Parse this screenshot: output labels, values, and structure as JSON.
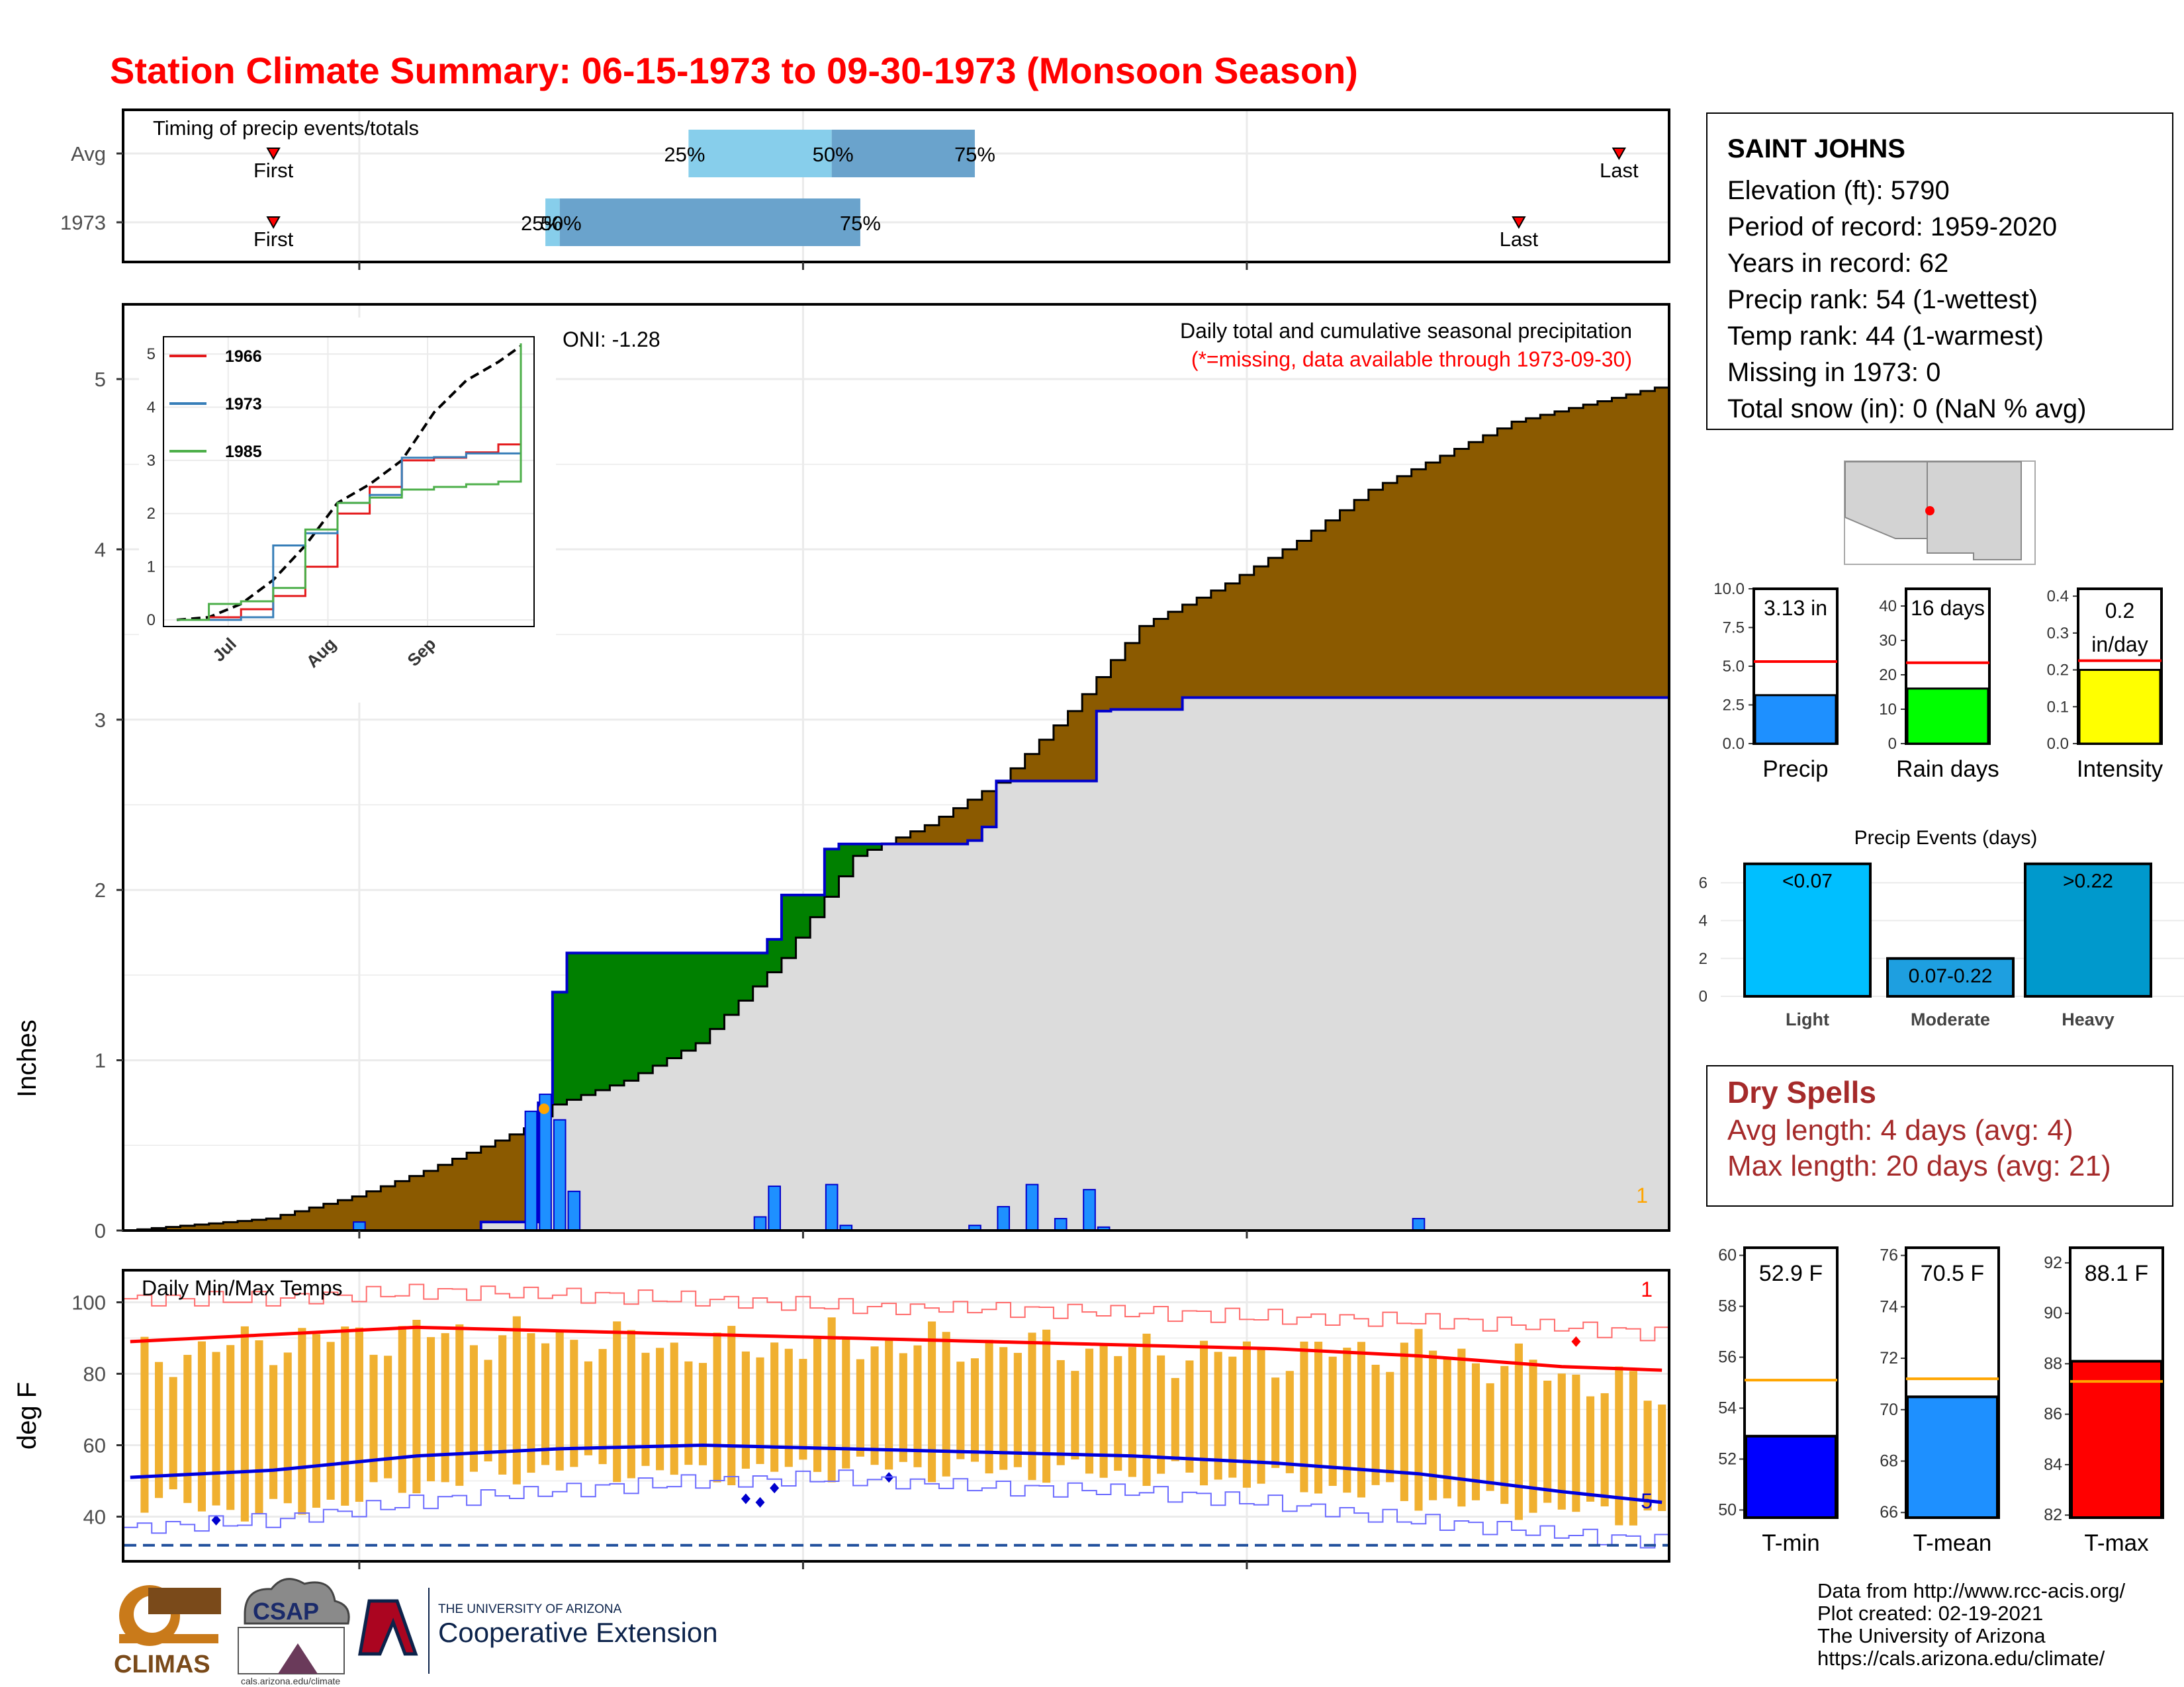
{
  "title": "Station Climate Summary: 06-15-1973 to 09-30-1973 (Monsoon Season)",
  "timing": {
    "label": "Timing of precip events/totals",
    "rows": [
      {
        "name": "Avg",
        "first": "06-25",
        "last": "09-27",
        "p25": "07-24",
        "p50": "08-03",
        "p75": "08-13"
      },
      {
        "name": "1973",
        "first": "06-25",
        "last": "09-20",
        "p25": "07-14",
        "p50": "07-15",
        "p75": "08-05"
      }
    ],
    "labels": {
      "first": "First",
      "last": "Last",
      "p25": "25%",
      "p50": "50%",
      "p75": "75%"
    }
  },
  "month_labels": [
    "Jul",
    "Aug",
    "Sep"
  ],
  "precip_panel": {
    "ylabel": "Inches",
    "yticks": [
      0,
      1,
      2,
      3,
      4,
      5
    ],
    "annotation_title": "Daily total and cumulative seasonal precipitation",
    "annotation_note": "(*=missing, data available through 1973-09-30)",
    "oni": "ONI: -1.28",
    "corner_count": "1"
  },
  "inset": {
    "yticks": [
      0,
      1,
      2,
      3,
      4,
      5
    ],
    "xticks": [
      "Jul",
      "Aug",
      "Sep"
    ],
    "legend": [
      {
        "name": "1966",
        "color": "#e41a1c"
      },
      {
        "name": "1973",
        "color": "#377eb8"
      },
      {
        "name": "1985",
        "color": "#4daf4a"
      }
    ]
  },
  "temp_panel": {
    "ylabel": "deg F",
    "label": "Daily Min/Max Temps",
    "yticks": [
      40,
      60,
      80,
      100
    ],
    "count_top": "1",
    "count_bottom": "5",
    "freeze_line": 32
  },
  "station": {
    "name": "SAINT JOHNS",
    "lines": [
      "Elevation (ft): 5790",
      "Period of record: 1959-2020",
      "Years in record: 62",
      "Precip rank: 54 (1-wettest)",
      "Temp rank: 44 (1-warmest)",
      "Missing in 1973: 0",
      "Total snow (in): 0 (NaN % avg)"
    ]
  },
  "mini_bars": [
    {
      "label": "Precip",
      "value": 3.13,
      "value_text": "3.13 in",
      "avg": 5.3,
      "ymax": 10.0,
      "yticks": [
        "0.0",
        "2.5",
        "5.0",
        "7.5",
        "10.0"
      ],
      "fill": "#1e90ff",
      "line": "#ff0000"
    },
    {
      "label": "Rain days",
      "value": 16,
      "value_text": "16 days",
      "avg": 23.5,
      "ymax": 45,
      "yticks": [
        "0",
        "10",
        "20",
        "30",
        "40"
      ],
      "fill": "#00ff00",
      "line": "#ff0000"
    },
    {
      "label": "Intensity",
      "value": 0.2,
      "value_text": "0.2 in/day",
      "avg": 0.225,
      "ymax": 0.42,
      "yticks": [
        "0.0",
        "0.1",
        "0.2",
        "0.3",
        "0.4"
      ],
      "fill": "#ffff00",
      "line": "#ff0000"
    }
  ],
  "events": {
    "title": "Precip Events (days)",
    "yticks": [
      0,
      2,
      4,
      6
    ],
    "bars": [
      {
        "label": "Light",
        "tag": "<0.07",
        "value": 7,
        "fill": "#00bfff"
      },
      {
        "label": "Moderate",
        "tag": "0.07-0.22",
        "value": 2,
        "fill": "#1e9fe0"
      },
      {
        "label": "Heavy",
        "tag": ">0.22",
        "value": 7,
        "fill": "#0099cc"
      }
    ]
  },
  "dry_spells": {
    "title": "Dry Spells",
    "avg_line": "Avg length: 4 days (avg: 4)",
    "max_line": "Max length: 20 days (avg: 21)"
  },
  "temp_bars": [
    {
      "label": "T-min",
      "value": 52.9,
      "value_text": "52.9 F",
      "avg": 55.1,
      "ymin": 49.7,
      "ymax": 60.3,
      "yticks": [
        50,
        52,
        54,
        56,
        58,
        60
      ],
      "fill": "#0000ff",
      "line": "#ffa500"
    },
    {
      "label": "T-mean",
      "value": 70.5,
      "value_text": "70.5 F",
      "avg": 71.2,
      "ymin": 65.8,
      "ymax": 76.3,
      "yticks": [
        66,
        68,
        70,
        72,
        74,
        76
      ],
      "fill": "#1e90ff",
      "line": "#ffa500"
    },
    {
      "label": "T-max",
      "value": 88.1,
      "value_text": "88.1 F",
      "avg": 87.3,
      "ymin": 81.9,
      "ymax": 92.6,
      "yticks": [
        82,
        84,
        86,
        88,
        90,
        92
      ],
      "fill": "#ff0000",
      "line": "#ffa500"
    }
  ],
  "logos": {
    "climas": "CLIMAS",
    "csap": "CSAP",
    "csap_url": "cals.arizona.edu/climate",
    "ua_small": "THE UNIVERSITY OF ARIZONA",
    "ua_big": "Cooperative Extension"
  },
  "credits": [
    "Data from http://www.rcc-acis.org/",
    "Plot created: 02-19-2021",
    "The University of Arizona",
    "https://cals.arizona.edu/climate/"
  ],
  "chart_data": [
    {
      "type": "area",
      "title": "Daily total and cumulative seasonal precipitation",
      "ylabel": "Inches",
      "ylim": [
        0,
        5.4
      ],
      "x_dates": [
        "06-15",
        "07-01",
        "07-10",
        "07-13",
        "07-14",
        "07-15",
        "07-16",
        "07-29",
        "07-30",
        "07-31",
        "08-03",
        "08-04",
        "08-05",
        "08-13",
        "08-14",
        "08-15",
        "08-17",
        "08-21",
        "08-22",
        "08-23",
        "08-27",
        "08-28",
        "09-13",
        "09-30"
      ],
      "series": [
        {
          "name": "avg_cumulative",
          "knots": [
            [
              "06-15",
              0.0
            ],
            [
              "06-25",
              0.07
            ],
            [
              "07-01",
              0.2
            ],
            [
              "07-06",
              0.35
            ],
            [
              "07-13",
              0.6
            ],
            [
              "07-15",
              0.74
            ],
            [
              "07-20",
              0.88
            ],
            [
              "07-25",
              1.1
            ],
            [
              "07-31",
              1.6
            ],
            [
              "08-05",
              2.2
            ],
            [
              "08-10",
              2.38
            ],
            [
              "08-15",
              2.63
            ],
            [
              "08-20",
              3.05
            ],
            [
              "08-25",
              3.55
            ],
            [
              "08-31",
              3.8
            ],
            [
              "09-05",
              4.05
            ],
            [
              "09-10",
              4.35
            ],
            [
              "09-15",
              4.55
            ],
            [
              "09-20",
              4.75
            ],
            [
              "09-30",
              4.95
            ]
          ]
        },
        {
          "name": "1973_cumulative",
          "values": [
            0.0,
            0.0,
            0.05,
            0.05,
            0.75,
            1.4,
            1.63,
            1.63,
            1.71,
            1.97,
            2.24,
            2.27,
            2.27,
            2.29,
            2.37,
            2.64,
            2.64,
            2.64,
            3.05,
            3.06,
            3.06,
            3.13,
            3.13,
            3.13
          ]
        },
        {
          "name": "1973_daily",
          "points": [
            [
              "07-01",
              0.05
            ],
            [
              "07-13",
              0.7
            ],
            [
              "07-14",
              0.8
            ],
            [
              "07-15",
              0.65
            ],
            [
              "07-16",
              0.23
            ],
            [
              "07-29",
              0.08
            ],
            [
              "07-30",
              0.26
            ],
            [
              "08-03",
              0.27
            ],
            [
              "08-04",
              0.03
            ],
            [
              "08-13",
              0.03
            ],
            [
              "08-15",
              0.14
            ],
            [
              "08-17",
              0.27
            ],
            [
              "08-19",
              0.07
            ],
            [
              "08-21",
              0.24
            ],
            [
              "08-22",
              0.02
            ],
            [
              "09-13",
              0.07
            ]
          ]
        }
      ]
    },
    {
      "type": "line",
      "title": "",
      "x": [
        "06-15",
        "06-25",
        "07-05",
        "07-15",
        "07-25",
        "08-04",
        "08-14",
        "08-24",
        "09-03",
        "09-13",
        "09-23",
        "09-30"
      ],
      "ylim": [
        0,
        5.2
      ],
      "series": [
        {
          "name": "",
          "style": "dashed",
          "values": [
            0.0,
            0.05,
            0.3,
            0.75,
            1.4,
            2.2,
            2.55,
            3.0,
            3.9,
            4.5,
            4.85,
            5.15
          ]
        },
        {
          "name": "1966",
          "values": [
            0.0,
            0.05,
            0.2,
            0.45,
            1.0,
            2.0,
            2.5,
            3.0,
            3.05,
            3.15,
            3.3,
            3.3
          ]
        },
        {
          "name": "1973",
          "values": [
            0.0,
            0.0,
            0.05,
            1.4,
            1.63,
            2.2,
            2.35,
            3.05,
            3.06,
            3.13,
            3.13,
            3.13
          ]
        },
        {
          "name": "1985",
          "values": [
            0.0,
            0.3,
            0.35,
            0.6,
            1.7,
            2.2,
            2.3,
            2.45,
            2.5,
            2.55,
            2.6,
            5.2
          ]
        }
      ]
    },
    {
      "type": "line",
      "title": "Daily Min/Max Temps",
      "ylabel": "deg F",
      "ylim": [
        28,
        108
      ],
      "x": [
        "06-15",
        "06-25",
        "07-05",
        "07-15",
        "07-25",
        "08-04",
        "08-14",
        "08-24",
        "09-03",
        "09-13",
        "09-23",
        "09-30"
      ],
      "series": [
        {
          "name": "avg_max",
          "values": [
            89,
            91,
            93,
            92,
            91,
            90,
            89,
            88,
            87,
            85,
            82,
            81
          ]
        },
        {
          "name": "avg_min",
          "values": [
            51,
            53,
            57,
            59,
            60,
            59,
            58,
            57,
            55,
            52,
            47,
            44
          ]
        },
        {
          "name": "record_max",
          "values": [
            101,
            101,
            103,
            102,
            101,
            99,
            98,
            97,
            96,
            95,
            93,
            91
          ]
        },
        {
          "name": "record_min",
          "values": [
            37,
            39,
            44,
            47,
            50,
            51,
            48,
            47,
            44,
            39,
            35,
            33
          ]
        },
        {
          "name": "1973_max",
          "values": [
            84,
            89,
            91,
            90,
            87,
            89,
            88,
            86,
            85,
            87,
            80,
            74
          ]
        },
        {
          "name": "1973_min",
          "values": [
            45,
            41,
            49,
            54,
            52,
            54,
            53,
            52,
            50,
            45,
            42,
            40
          ]
        }
      ]
    }
  ]
}
